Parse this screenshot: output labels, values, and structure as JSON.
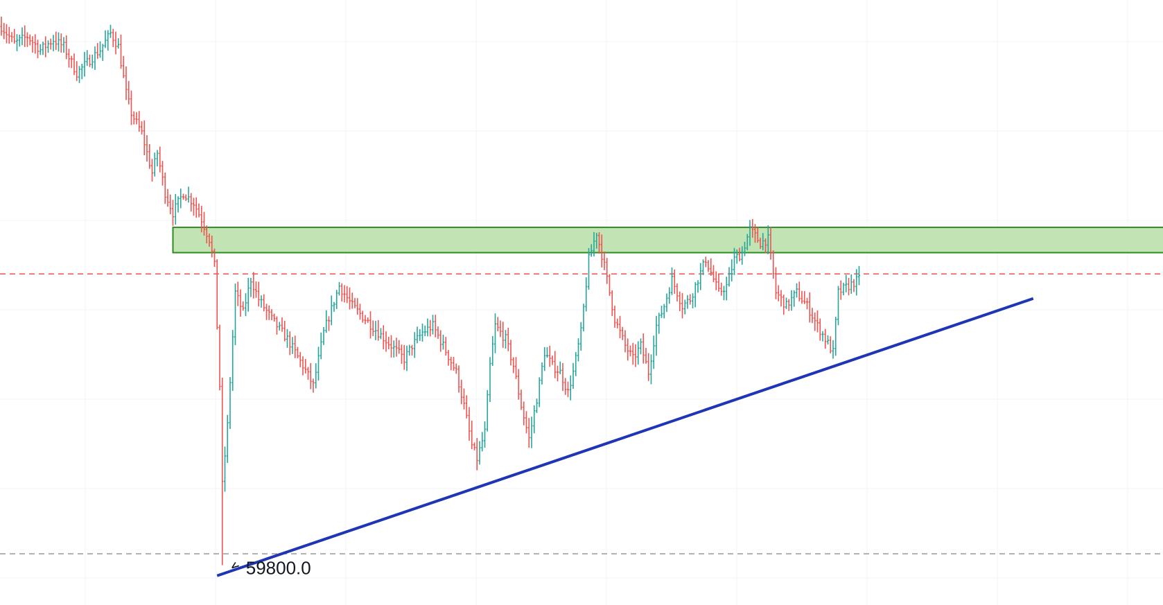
{
  "chart_data": {
    "type": "bar",
    "style": "ohlc",
    "up_color": "#26a69a",
    "down_color": "#ef5350",
    "ylim": [
      59200,
      68300
    ],
    "x_range": [
      0,
      460
    ],
    "grid": true,
    "low_marker": {
      "index": 85,
      "value": 59800.0,
      "label": "59800.0"
    },
    "zone": {
      "y_low": 64500,
      "y_high": 64880,
      "x_start": 66,
      "color": "#b7dfa8",
      "border_color": "#2e8b22"
    },
    "hline_red": {
      "value": 64180,
      "color": "#ef5350"
    },
    "hline_gray": {
      "value": 59970,
      "color": "#9598a1"
    },
    "trendline": {
      "x1": 83,
      "y1": 59640,
      "x2": 397,
      "y2": 63810,
      "color": "#1e35b5"
    },
    "anchors": [
      [
        0,
        67900
      ],
      [
        5,
        67650
      ],
      [
        10,
        67750
      ],
      [
        15,
        67550
      ],
      [
        20,
        67700
      ],
      [
        24,
        67600
      ],
      [
        29,
        67200
      ],
      [
        34,
        67400
      ],
      [
        38,
        67550
      ],
      [
        42,
        67800
      ],
      [
        45,
        67600
      ],
      [
        48,
        66900
      ],
      [
        50,
        66600
      ],
      [
        54,
        66300
      ],
      [
        58,
        65700
      ],
      [
        60,
        66000
      ],
      [
        63,
        65400
      ],
      [
        66,
        65100
      ],
      [
        70,
        65400
      ],
      [
        74,
        65250
      ],
      [
        77,
        65000
      ],
      [
        80,
        64700
      ],
      [
        82,
        64300
      ],
      [
        84,
        62500
      ],
      [
        85,
        61000
      ],
      [
        87,
        61900
      ],
      [
        90,
        63900
      ],
      [
        93,
        63600
      ],
      [
        96,
        64100
      ],
      [
        99,
        63800
      ],
      [
        104,
        63500
      ],
      [
        110,
        63200
      ],
      [
        116,
        62800
      ],
      [
        120,
        62500
      ],
      [
        124,
        63300
      ],
      [
        130,
        64000
      ],
      [
        135,
        63700
      ],
      [
        140,
        63500
      ],
      [
        145,
        63300
      ],
      [
        150,
        63100
      ],
      [
        155,
        62900
      ],
      [
        158,
        63100
      ],
      [
        162,
        63300
      ],
      [
        166,
        63400
      ],
      [
        170,
        63100
      ],
      [
        175,
        62700
      ],
      [
        178,
        62200
      ],
      [
        181,
        61600
      ],
      [
        183,
        61400
      ],
      [
        186,
        61800
      ],
      [
        188,
        62800
      ],
      [
        190,
        63400
      ],
      [
        194,
        63200
      ],
      [
        197,
        62800
      ],
      [
        200,
        62200
      ],
      [
        203,
        61700
      ],
      [
        206,
        62300
      ],
      [
        209,
        63000
      ],
      [
        212,
        62800
      ],
      [
        215,
        62700
      ],
      [
        218,
        62400
      ],
      [
        220,
        62700
      ],
      [
        223,
        63300
      ],
      [
        226,
        64400
      ],
      [
        229,
        64800
      ],
      [
        232,
        64300
      ],
      [
        236,
        63500
      ],
      [
        240,
        63100
      ],
      [
        243,
        62900
      ],
      [
        246,
        63100
      ],
      [
        249,
        62700
      ],
      [
        252,
        63400
      ],
      [
        255,
        63700
      ],
      [
        258,
        64100
      ],
      [
        262,
        63700
      ],
      [
        265,
        63800
      ],
      [
        268,
        64100
      ],
      [
        271,
        64400
      ],
      [
        273,
        64200
      ],
      [
        276,
        63900
      ],
      [
        279,
        64000
      ],
      [
        282,
        64400
      ],
      [
        285,
        64500
      ],
      [
        288,
        64850
      ],
      [
        292,
        64650
      ],
      [
        295,
        64700
      ],
      [
        298,
        63900
      ],
      [
        302,
        63700
      ],
      [
        306,
        63900
      ],
      [
        310,
        63700
      ],
      [
        314,
        63400
      ],
      [
        317,
        63200
      ],
      [
        320,
        63000
      ],
      [
        322,
        63900
      ],
      [
        326,
        64000
      ],
      [
        330,
        64100
      ]
    ]
  }
}
